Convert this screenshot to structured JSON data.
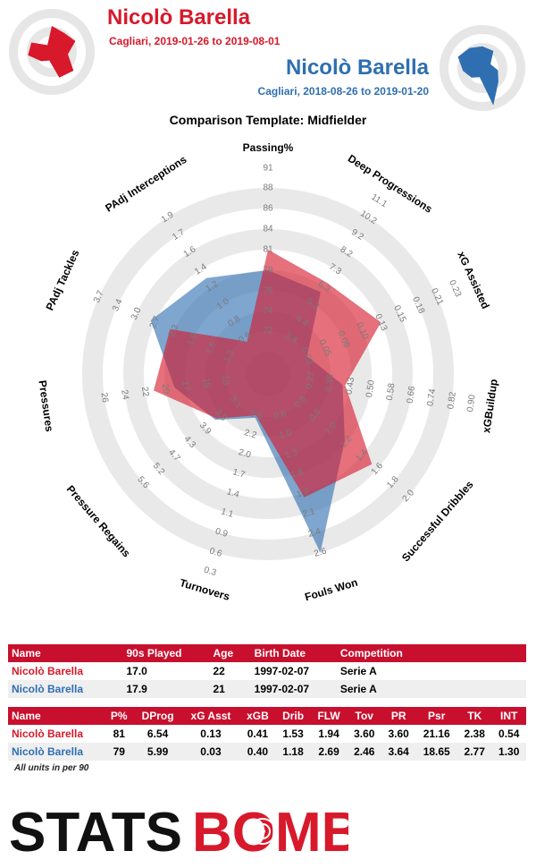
{
  "header": {
    "player1_name": "Nicolò Barella",
    "player1_sub": "Cagliari, 2019-01-26 to 2019-08-01",
    "player2_name": "Nicolò Barella",
    "player2_sub": "Cagliari, 2018-08-26 to 2019-01-20",
    "template_title": "Comparison Template: Midfielder"
  },
  "colors": {
    "player1": "#d7192b",
    "player2": "#2f6fb1",
    "ring": "#e6e6e6",
    "table_header": "#c8102e"
  },
  "chart_data": {
    "type": "radar",
    "axes": [
      {
        "label": "Passing%",
        "ticks": [
          "72",
          "74",
          "76",
          "79",
          "81",
          "84",
          "86",
          "88",
          "91"
        ]
      },
      {
        "label": "Deep Progressions",
        "ticks": [
          "3.4",
          "4.4",
          "5.3",
          "6.3",
          "7.3",
          "8.2",
          "9.2",
          "10.2",
          "11.1"
        ]
      },
      {
        "label": "xG Assisted",
        "ticks": [
          "0.03",
          "0.05",
          "0.08",
          "0.10",
          "0.13",
          "0.15",
          "0.18",
          "0.21",
          "0.23"
        ]
      },
      {
        "label": "xGBuildup",
        "ticks": [
          "0.27",
          "0.35",
          "0.43",
          "0.50",
          "0.58",
          "0.66",
          "0.74",
          "0.82",
          "0.90"
        ]
      },
      {
        "label": "Successful Dribbles",
        "ticks": [
          "0.6",
          "0.8",
          "1.0",
          "1.2",
          "1.4",
          "1.6",
          "1.8",
          "2.0"
        ]
      },
      {
        "label": "Fouls Won",
        "ticks": [
          "0.6",
          "1.0",
          "1.3",
          "1.6",
          "1.9",
          "2.1",
          "2.4",
          "2.6"
        ]
      },
      {
        "label": "Turnovers",
        "ticks": [
          "2.5",
          "2.2",
          "2.0",
          "1.7",
          "1.4",
          "1.1",
          "0.9",
          "0.6",
          "0.3"
        ]
      },
      {
        "label": "Pressure Regains",
        "ticks": [
          "3.1",
          "3.5",
          "3.9",
          "4.3",
          "4.7",
          "5.2",
          "5.6"
        ]
      },
      {
        "label": "Pressures",
        "ticks": [
          "13",
          "15",
          "17",
          "20",
          "22",
          "24",
          "26"
        ]
      },
      {
        "label": "PAdj Tackles",
        "ticks": [
          "1.3",
          "1.6",
          "1.9",
          "2.3",
          "2.7",
          "3.0",
          "3.4",
          "3.7"
        ]
      },
      {
        "label": "PAdj Interceptions",
        "ticks": [
          "0.6",
          "0.8",
          "1.0",
          "1.2",
          "1.4",
          "1.6",
          "1.7",
          "1.9"
        ]
      }
    ],
    "series": [
      {
        "name": "Nicolò Barella (2019-01-26 to 2019-08-01)",
        "color": "#d7192b",
        "values": [
          81,
          6.54,
          0.13,
          0.41,
          1.53,
          1.94,
          3.6,
          3.6,
          21.16,
          2.38,
          0.54
        ]
      },
      {
        "name": "Nicolò Barella (2018-08-26 to 2019-01-20)",
        "color": "#2f6fb1",
        "values": [
          79,
          5.99,
          0.03,
          0.4,
          1.18,
          2.69,
          2.46,
          3.64,
          18.65,
          2.77,
          1.3
        ]
      }
    ]
  },
  "table1": {
    "headers": [
      "Name",
      "90s Played",
      "Age",
      "Birth Date",
      "Competition"
    ],
    "rows": [
      [
        "Nicolò Barella",
        "17.0",
        "22",
        "1997-02-07",
        "Serie A"
      ],
      [
        "Nicolò Barella",
        "17.9",
        "21",
        "1997-02-07",
        "Serie A"
      ]
    ]
  },
  "table2": {
    "headers": [
      "Name",
      "P%",
      "DProg",
      "xG Asst",
      "xGB",
      "Drib",
      "FLW",
      "Tov",
      "PR",
      "Psr",
      "TK",
      "INT"
    ],
    "rows": [
      [
        "Nicolò Barella",
        "81",
        "6.54",
        "0.13",
        "0.41",
        "1.53",
        "1.94",
        "3.60",
        "3.60",
        "21.16",
        "2.38",
        "0.54"
      ],
      [
        "Nicolò Barella",
        "79",
        "5.99",
        "0.03",
        "0.40",
        "1.18",
        "2.69",
        "2.46",
        "3.64",
        "18.65",
        "2.77",
        "1.30"
      ]
    ]
  },
  "footnote": "All units in per 90",
  "logo": {
    "part1": "STATS",
    "part2": "BOMB"
  }
}
